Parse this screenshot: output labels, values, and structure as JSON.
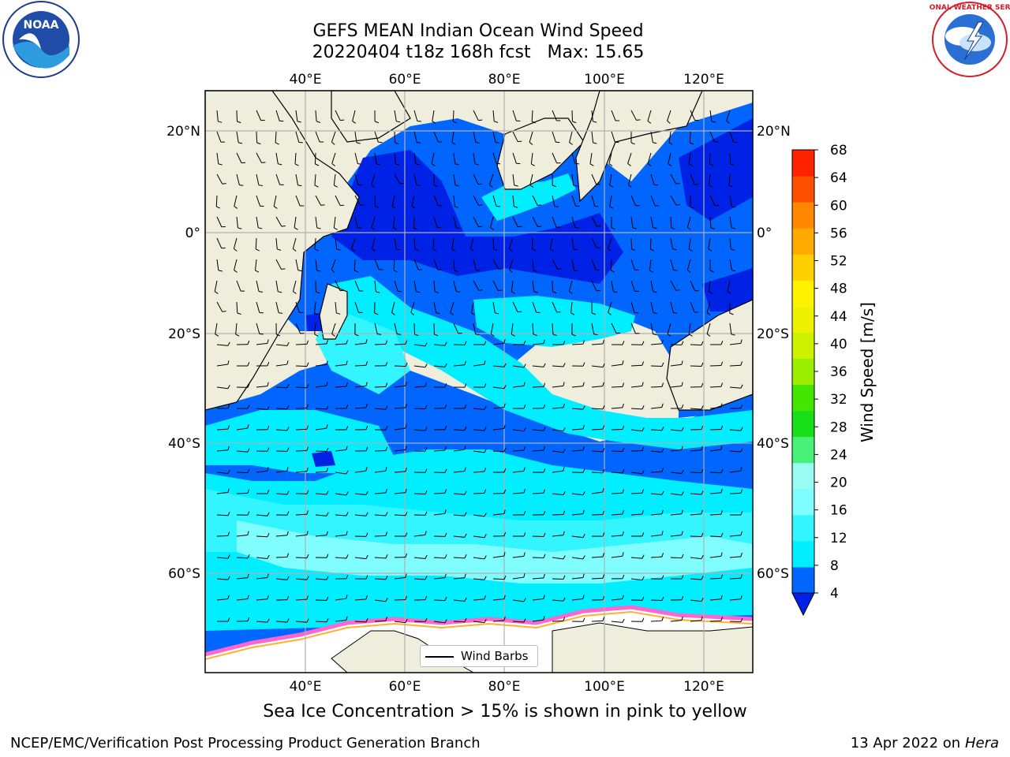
{
  "header": {
    "title_line1": "GEFS MEAN Indian Ocean Wind Speed",
    "title_line2": "20220404 t18z 168h fcst   Max: 15.65"
  },
  "logos": {
    "left": "noaa-logo",
    "left_text": "NOAA",
    "right": "national-weather-service-logo",
    "right_text": "NATIONAL WEATHER SERVICE"
  },
  "map": {
    "lon_range": [
      20,
      130
    ],
    "lat_range": [
      -75,
      28
    ],
    "lon_ticks_top": [
      "40°E",
      "60°E",
      "80°E",
      "100°E",
      "120°E"
    ],
    "lon_ticks_bottom": [
      "40°E",
      "60°E",
      "80°E",
      "100°E",
      "120°E"
    ],
    "lat_ticks_left": [
      "20°N",
      "0°",
      "20°S",
      "40°S",
      "60°S"
    ],
    "lat_ticks_right": [
      "20°N",
      "0°",
      "20°S",
      "40°S",
      "60°S"
    ],
    "grid": true,
    "land_color": "#efeedd",
    "ice_color": "#ffffff",
    "legend_label": "Wind Barbs"
  },
  "colorbar": {
    "label": "Wind Speed [m/s]",
    "ticks": [
      "4",
      "8",
      "12",
      "16",
      "20",
      "24",
      "28",
      "32",
      "36",
      "40",
      "44",
      "48",
      "52",
      "56",
      "60",
      "64",
      "68"
    ],
    "colors": [
      "#0066ff",
      "#00eeff",
      "#33f5ff",
      "#80fdff",
      "#99fcf2",
      "#48f27a",
      "#18e018",
      "#44e600",
      "#9bee00",
      "#ccf200",
      "#eef200",
      "#fff200",
      "#ffd000",
      "#ffaa00",
      "#ff8800",
      "#ff5000",
      "#ff2200"
    ],
    "extend_color": "#0022e6"
  },
  "footer": {
    "note": "Sea Ice Concentration > 15% is shown in pink to yellow",
    "left": "NCEP/EMC/Verification Post Processing Product Generation Branch",
    "date": "13 Apr 2022 on",
    "host": "Hera"
  }
}
